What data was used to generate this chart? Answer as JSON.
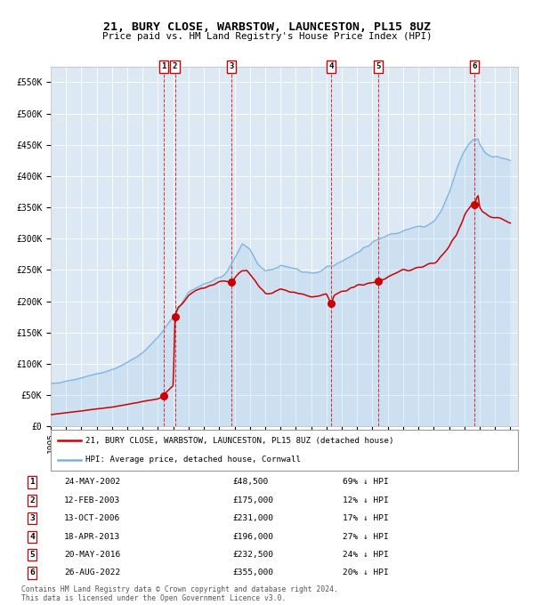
{
  "title": "21, BURY CLOSE, WARBSTOW, LAUNCESTON, PL15 8UZ",
  "subtitle": "Price paid vs. HM Land Registry's House Price Index (HPI)",
  "ylim": [
    0,
    575000
  ],
  "yticks": [
    0,
    50000,
    100000,
    150000,
    200000,
    250000,
    300000,
    350000,
    400000,
    450000,
    500000,
    550000
  ],
  "ytick_labels": [
    "£0",
    "£50K",
    "£100K",
    "£150K",
    "£200K",
    "£250K",
    "£300K",
    "£350K",
    "£400K",
    "£450K",
    "£500K",
    "£550K"
  ],
  "xlim_start": 1995.0,
  "xlim_end": 2025.5,
  "background_color": "#dce9f5",
  "hpi_color": "#7ab3e0",
  "price_color": "#cc0000",
  "sale_dates_x": [
    2002.388,
    2003.11,
    2006.786,
    2013.296,
    2016.384,
    2022.653
  ],
  "sale_prices_y": [
    48500,
    175000,
    231000,
    196000,
    232500,
    355000
  ],
  "sale_labels": [
    "1",
    "2",
    "3",
    "4",
    "5",
    "6"
  ],
  "sale_dates_str": [
    "24-MAY-2002",
    "12-FEB-2003",
    "13-OCT-2006",
    "18-APR-2013",
    "20-MAY-2016",
    "26-AUG-2022"
  ],
  "sale_prices_str": [
    "£48,500",
    "£175,000",
    "£231,000",
    "£196,000",
    "£232,500",
    "£355,000"
  ],
  "sale_hpi_pct": [
    "69% ↓ HPI",
    "12% ↓ HPI",
    "17% ↓ HPI",
    "27% ↓ HPI",
    "24% ↓ HPI",
    "20% ↓ HPI"
  ],
  "legend_label_red": "21, BURY CLOSE, WARBSTOW, LAUNCESTON, PL15 8UZ (detached house)",
  "legend_label_blue": "HPI: Average price, detached house, Cornwall",
  "footer1": "Contains HM Land Registry data © Crown copyright and database right 2024.",
  "footer2": "This data is licensed under the Open Government Licence v3.0."
}
